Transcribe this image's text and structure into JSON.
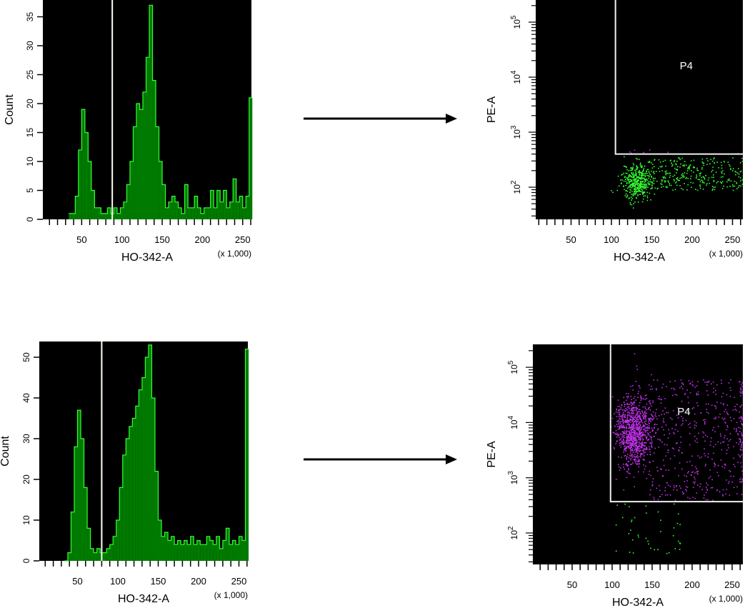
{
  "figure": {
    "arrows": [
      {
        "from": "top-left histogram",
        "to": "top-right dot plot"
      },
      {
        "from": "bottom-left histogram",
        "to": "bottom-right dot plot"
      }
    ]
  },
  "colors": {
    "plot_background": "#000000",
    "histogram_fill": "#007a00",
    "histogram_outline": "#33ff33",
    "gate_line": "#fffff0",
    "events_outside_gate": "#33ff33",
    "events_in_P4": "#c030e8"
  },
  "chart_data": [
    {
      "type": "bar",
      "subtype": "histogram",
      "position": "top-left",
      "xlabel": "HO-342-A",
      "x_multiplier_label": "(x 1,000)",
      "ylabel": "Count",
      "xlim": [
        0,
        262
      ],
      "ylim": [
        0,
        38
      ],
      "x_ticks": [
        "50",
        "100",
        "150",
        "200",
        "250"
      ],
      "y_ticks": [
        "0",
        "5",
        "10",
        "15",
        "20",
        "25",
        "30",
        "35"
      ],
      "grid": false,
      "bin_width": 4,
      "x": [
        36,
        40,
        44,
        48,
        52,
        56,
        60,
        64,
        68,
        72,
        76,
        80,
        84,
        88,
        92,
        96,
        100,
        104,
        108,
        112,
        116,
        120,
        124,
        128,
        132,
        136,
        140,
        144,
        148,
        152,
        156,
        160,
        164,
        168,
        172,
        176,
        180,
        184,
        188,
        192,
        196,
        200,
        204,
        208,
        212,
        216,
        220,
        224,
        228,
        232,
        236,
        240,
        244,
        248,
        252,
        256,
        260
      ],
      "values": [
        1,
        1,
        4,
        12,
        19,
        15,
        10,
        5,
        2,
        2,
        1,
        1,
        2,
        1,
        2,
        1,
        2,
        3,
        6,
        10,
        16,
        20,
        19,
        22,
        28,
        37,
        24,
        16,
        10,
        6,
        2,
        3,
        4,
        3,
        2,
        1,
        6,
        2,
        2,
        4,
        2,
        1,
        2,
        2,
        5,
        2,
        5,
        3,
        5,
        2,
        3,
        7,
        3,
        4,
        2,
        4,
        21
      ],
      "gate_marker_x": 88
    },
    {
      "type": "bar",
      "subtype": "histogram",
      "position": "bottom-left",
      "xlabel": "HO-342-A",
      "x_multiplier_label": "(x 1,000)",
      "ylabel": "Count",
      "xlim": [
        0,
        262
      ],
      "ylim": [
        0,
        54
      ],
      "x_ticks": [
        "50",
        "100",
        "150",
        "200",
        "250"
      ],
      "y_ticks": [
        "0",
        "10",
        "20",
        "30",
        "40",
        "50"
      ],
      "grid": false,
      "bin_width": 4,
      "x": [
        36,
        40,
        44,
        48,
        52,
        56,
        60,
        64,
        68,
        72,
        76,
        80,
        84,
        88,
        92,
        96,
        100,
        104,
        108,
        112,
        116,
        120,
        124,
        128,
        132,
        136,
        140,
        144,
        148,
        152,
        156,
        160,
        164,
        168,
        172,
        176,
        180,
        184,
        188,
        192,
        196,
        200,
        204,
        208,
        212,
        216,
        220,
        224,
        228,
        232,
        236,
        240,
        244,
        248,
        252,
        256,
        260
      ],
      "values": [
        0,
        2,
        12,
        28,
        37,
        30,
        18,
        8,
        3,
        2,
        3,
        2,
        2,
        3,
        4,
        6,
        10,
        18,
        26,
        30,
        33,
        35,
        38,
        42,
        45,
        50,
        53,
        40,
        22,
        10,
        6,
        7,
        5,
        6,
        4,
        5,
        4,
        5,
        4,
        6,
        4,
        5,
        4,
        4,
        6,
        5,
        4,
        6,
        3,
        5,
        8,
        4,
        5,
        4,
        6,
        5,
        52
      ],
      "gate_marker_x": 80
    },
    {
      "type": "scatter",
      "position": "top-right",
      "xlabel": "HO-342-A",
      "x_multiplier_label": "(x 1,000)",
      "ylabel": "PE-A",
      "xlim": [
        0,
        262
      ],
      "yscale": "log",
      "ylim": [
        26,
        250000
      ],
      "x_ticks": [
        "50",
        "100",
        "150",
        "200",
        "250"
      ],
      "y_ticks": [
        {
          "base": "10",
          "exp": "2"
        },
        {
          "base": "10",
          "exp": "3"
        },
        {
          "base": "10",
          "exp": "4"
        },
        {
          "base": "10",
          "exp": "5"
        }
      ],
      "gate": {
        "label": "P4",
        "x_min": 105,
        "y_min": 400
      },
      "populations": [
        {
          "color": "green",
          "distribution": "normal",
          "x_mean": 132,
          "x_sd": 9,
          "log10_y_mean": 2.1,
          "log10_y_sd": 0.17,
          "events": 420
        },
        {
          "color": "green",
          "distribution": "uniform",
          "x_range": [
            145,
            262
          ],
          "log10_y_range": [
            1.95,
            2.55
          ],
          "events": 280
        },
        {
          "color": "purple",
          "distribution": "uniform",
          "x_range": [
            120,
            262
          ],
          "log10_y_range": [
            2.6,
            2.7
          ],
          "events": 8
        }
      ]
    },
    {
      "type": "scatter",
      "position": "bottom-right",
      "xlabel": "HO-342-A",
      "x_multiplier_label": "(x 1,000)",
      "ylabel": "PE-A",
      "xlim": [
        0,
        262
      ],
      "yscale": "log",
      "ylim": [
        27,
        260000
      ],
      "x_ticks": [
        "50",
        "100",
        "150",
        "200",
        "250"
      ],
      "y_ticks": [
        {
          "base": "10",
          "exp": "2"
        },
        {
          "base": "10",
          "exp": "3"
        },
        {
          "base": "10",
          "exp": "4"
        },
        {
          "base": "10",
          "exp": "5"
        }
      ],
      "gate": {
        "label": "P4",
        "x_min": 98,
        "y_min": 370
      },
      "populations": [
        {
          "color": "purple",
          "distribution": "normal",
          "x_mean": 127,
          "x_sd": 11,
          "log10_y_mean": 3.85,
          "log10_y_sd": 0.33,
          "events": 1000
        },
        {
          "color": "purple",
          "distribution": "uniform",
          "x_range": [
            145,
            262
          ],
          "log10_y_range": [
            2.6,
            4.8
          ],
          "events": 450
        },
        {
          "color": "purple",
          "distribution": "uniform",
          "x_range": [
            259,
            262
          ],
          "log10_y_range": [
            2.8,
            4.7
          ],
          "events": 40
        },
        {
          "color": "green",
          "distribution": "uniform",
          "x_range": [
            102,
            185
          ],
          "log10_y_range": [
            1.6,
            2.55
          ],
          "events": 40
        }
      ]
    }
  ]
}
